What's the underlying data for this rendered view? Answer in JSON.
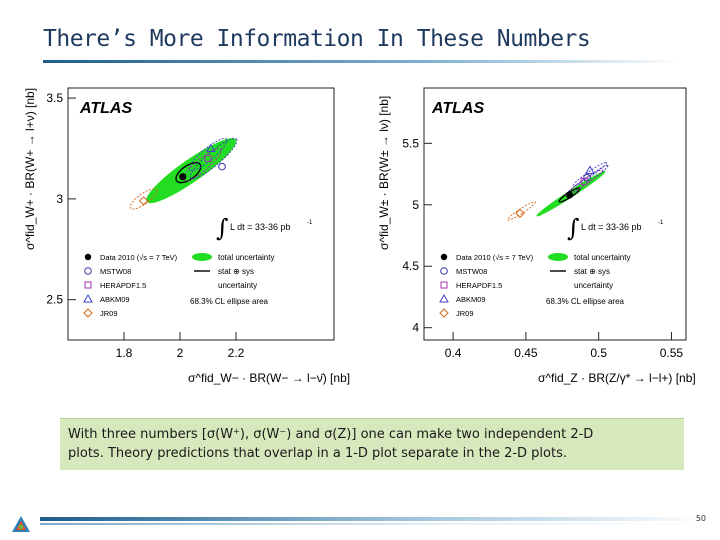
{
  "slide": {
    "title": "There’s More Information In These Numbers",
    "page_number": "50"
  },
  "caption": {
    "line1": "With three numbers [σ(W⁺), σ(W⁻) and σ(Z)] one can make two independent 2-D",
    "line2": "plots.  Theory predictions that overlap in a 1-D plot separate in the 2-D plots."
  },
  "colors": {
    "data_marker": "#000000",
    "total_uncertainty": "#22dd22",
    "mstw": "#3333aa",
    "herapdf": "#aa33aa",
    "abkm": "#4444cc",
    "jr": "#d2691e",
    "title_blue": "#1f3a5f",
    "caption_bg": "#d7e8bd"
  },
  "legend": {
    "data": "Data 2010 (√s = 7 TeV)",
    "mstw": "MSTW08",
    "herapdf": "HERAPDF1.5",
    "abkm": "ABKM09",
    "jr": "JR09",
    "total": "total uncertainty",
    "stat_sys_1": "stat ⊕ sys",
    "stat_sys_2": "uncertainty",
    "ellipse_note": "68.3% CL ellipse area",
    "lumi_prefix": "∫",
    "lumi": "L dt = 33-36 pb",
    "lumi_exp": "-1",
    "atlas": "ATLAS"
  },
  "chart_data": [
    {
      "type": "scatter",
      "title": "",
      "xlabel": "σ^fid_W− · BR(W− → l−ν̄) [nb]",
      "ylabel": "σ^fid_W+ · BR(W+ → l+ν) [nb]",
      "xlim": [
        1.6,
        2.55
      ],
      "ylim": [
        2.3,
        3.55
      ],
      "xticks": [
        1.8,
        2.0,
        2.2
      ],
      "xtick_labels": [
        "1.8",
        "2",
        "2.2"
      ],
      "yticks": [
        2.5,
        3.0,
        3.5
      ],
      "ytick_labels": [
        "2.5",
        "3",
        "3.5"
      ],
      "legend_position": "bottom",
      "data_point": {
        "x": 2.01,
        "y": 3.11
      },
      "ellipses": [
        {
          "name": "total uncertainty",
          "cx": 2.04,
          "cy": 3.14,
          "rx": 0.27,
          "ry": 0.055,
          "angle_deg": -35,
          "fill": true
        },
        {
          "name": "stat ⊕ sys uncertainty",
          "cx": 2.03,
          "cy": 3.13,
          "rx": 0.07,
          "ry": 0.03,
          "angle_deg": -35,
          "fill": false
        },
        {
          "name": "MSTW08",
          "cx": 2.12,
          "cy": 3.2,
          "rx": 0.15,
          "ry": 0.03,
          "angle_deg": -40,
          "fill": false
        },
        {
          "name": "HERAPDF1.5",
          "cx": 2.08,
          "cy": 3.17,
          "rx": 0.12,
          "ry": 0.025,
          "angle_deg": -40,
          "fill": false
        },
        {
          "name": "ABKM09",
          "cx": 2.1,
          "cy": 3.22,
          "rx": 0.12,
          "ry": 0.025,
          "angle_deg": -40,
          "fill": false
        },
        {
          "name": "JR09",
          "cx": 1.87,
          "cy": 3.0,
          "rx": 0.08,
          "ry": 0.02,
          "angle_deg": -35,
          "fill": false
        }
      ],
      "predictions": [
        {
          "name": "MSTW08",
          "marker": "circle",
          "x": 2.15,
          "y": 3.16
        },
        {
          "name": "HERAPDF1.5",
          "marker": "square",
          "x": 2.1,
          "y": 3.2
        },
        {
          "name": "ABKM09",
          "marker": "triangle",
          "x": 2.11,
          "y": 3.25
        },
        {
          "name": "JR09",
          "marker": "diamond",
          "x": 1.87,
          "y": 2.99
        }
      ]
    },
    {
      "type": "scatter",
      "title": "",
      "xlabel": "σ^fid_Z · BR(Z/γ* → l−l+) [nb]",
      "ylabel": "σ^fid_W± · BR(W± → lν) [nb]",
      "xlim": [
        0.38,
        0.56
      ],
      "ylim": [
        3.9,
        5.95
      ],
      "xticks": [
        0.4,
        0.45,
        0.5,
        0.55
      ],
      "xtick_labels": [
        "0.4",
        "0.45",
        "0.5",
        "0.55"
      ],
      "yticks": [
        4.0,
        4.5,
        5.0,
        5.5
      ],
      "ytick_labels": [
        "4",
        "4.5",
        "5",
        "5.5"
      ],
      "legend_position": "bottom",
      "data_point": {
        "x": 0.48,
        "y": 5.08
      },
      "ellipses": [
        {
          "name": "total uncertainty",
          "cx": 0.481,
          "cy": 5.09,
          "rx": 0.04,
          "ry": 0.012,
          "angle_deg": -33,
          "fill": true
        },
        {
          "name": "stat ⊕ sys uncertainty",
          "cx": 0.48,
          "cy": 5.08,
          "rx": 0.012,
          "ry": 0.005,
          "angle_deg": -33,
          "fill": false
        },
        {
          "name": "MSTW08",
          "cx": 0.492,
          "cy": 5.2,
          "rx": 0.025,
          "ry": 0.006,
          "angle_deg": -35,
          "fill": false
        },
        {
          "name": "HERAPDF1.5",
          "cx": 0.49,
          "cy": 5.18,
          "rx": 0.022,
          "ry": 0.005,
          "angle_deg": -35,
          "fill": false
        },
        {
          "name": "ABKM09",
          "cx": 0.494,
          "cy": 5.25,
          "rx": 0.02,
          "ry": 0.005,
          "angle_deg": -35,
          "fill": false
        },
        {
          "name": "JR09",
          "cx": 0.447,
          "cy": 4.95,
          "rx": 0.016,
          "ry": 0.004,
          "angle_deg": -33,
          "fill": false
        }
      ],
      "predictions": [
        {
          "name": "MSTW08",
          "marker": "circle",
          "x": 0.492,
          "y": 5.22
        },
        {
          "name": "HERAPDF1.5",
          "marker": "square",
          "x": 0.49,
          "y": 5.19
        },
        {
          "name": "ABKM09",
          "marker": "triangle",
          "x": 0.494,
          "y": 5.28
        },
        {
          "name": "JR09",
          "marker": "diamond",
          "x": 0.446,
          "y": 4.93
        }
      ]
    }
  ]
}
